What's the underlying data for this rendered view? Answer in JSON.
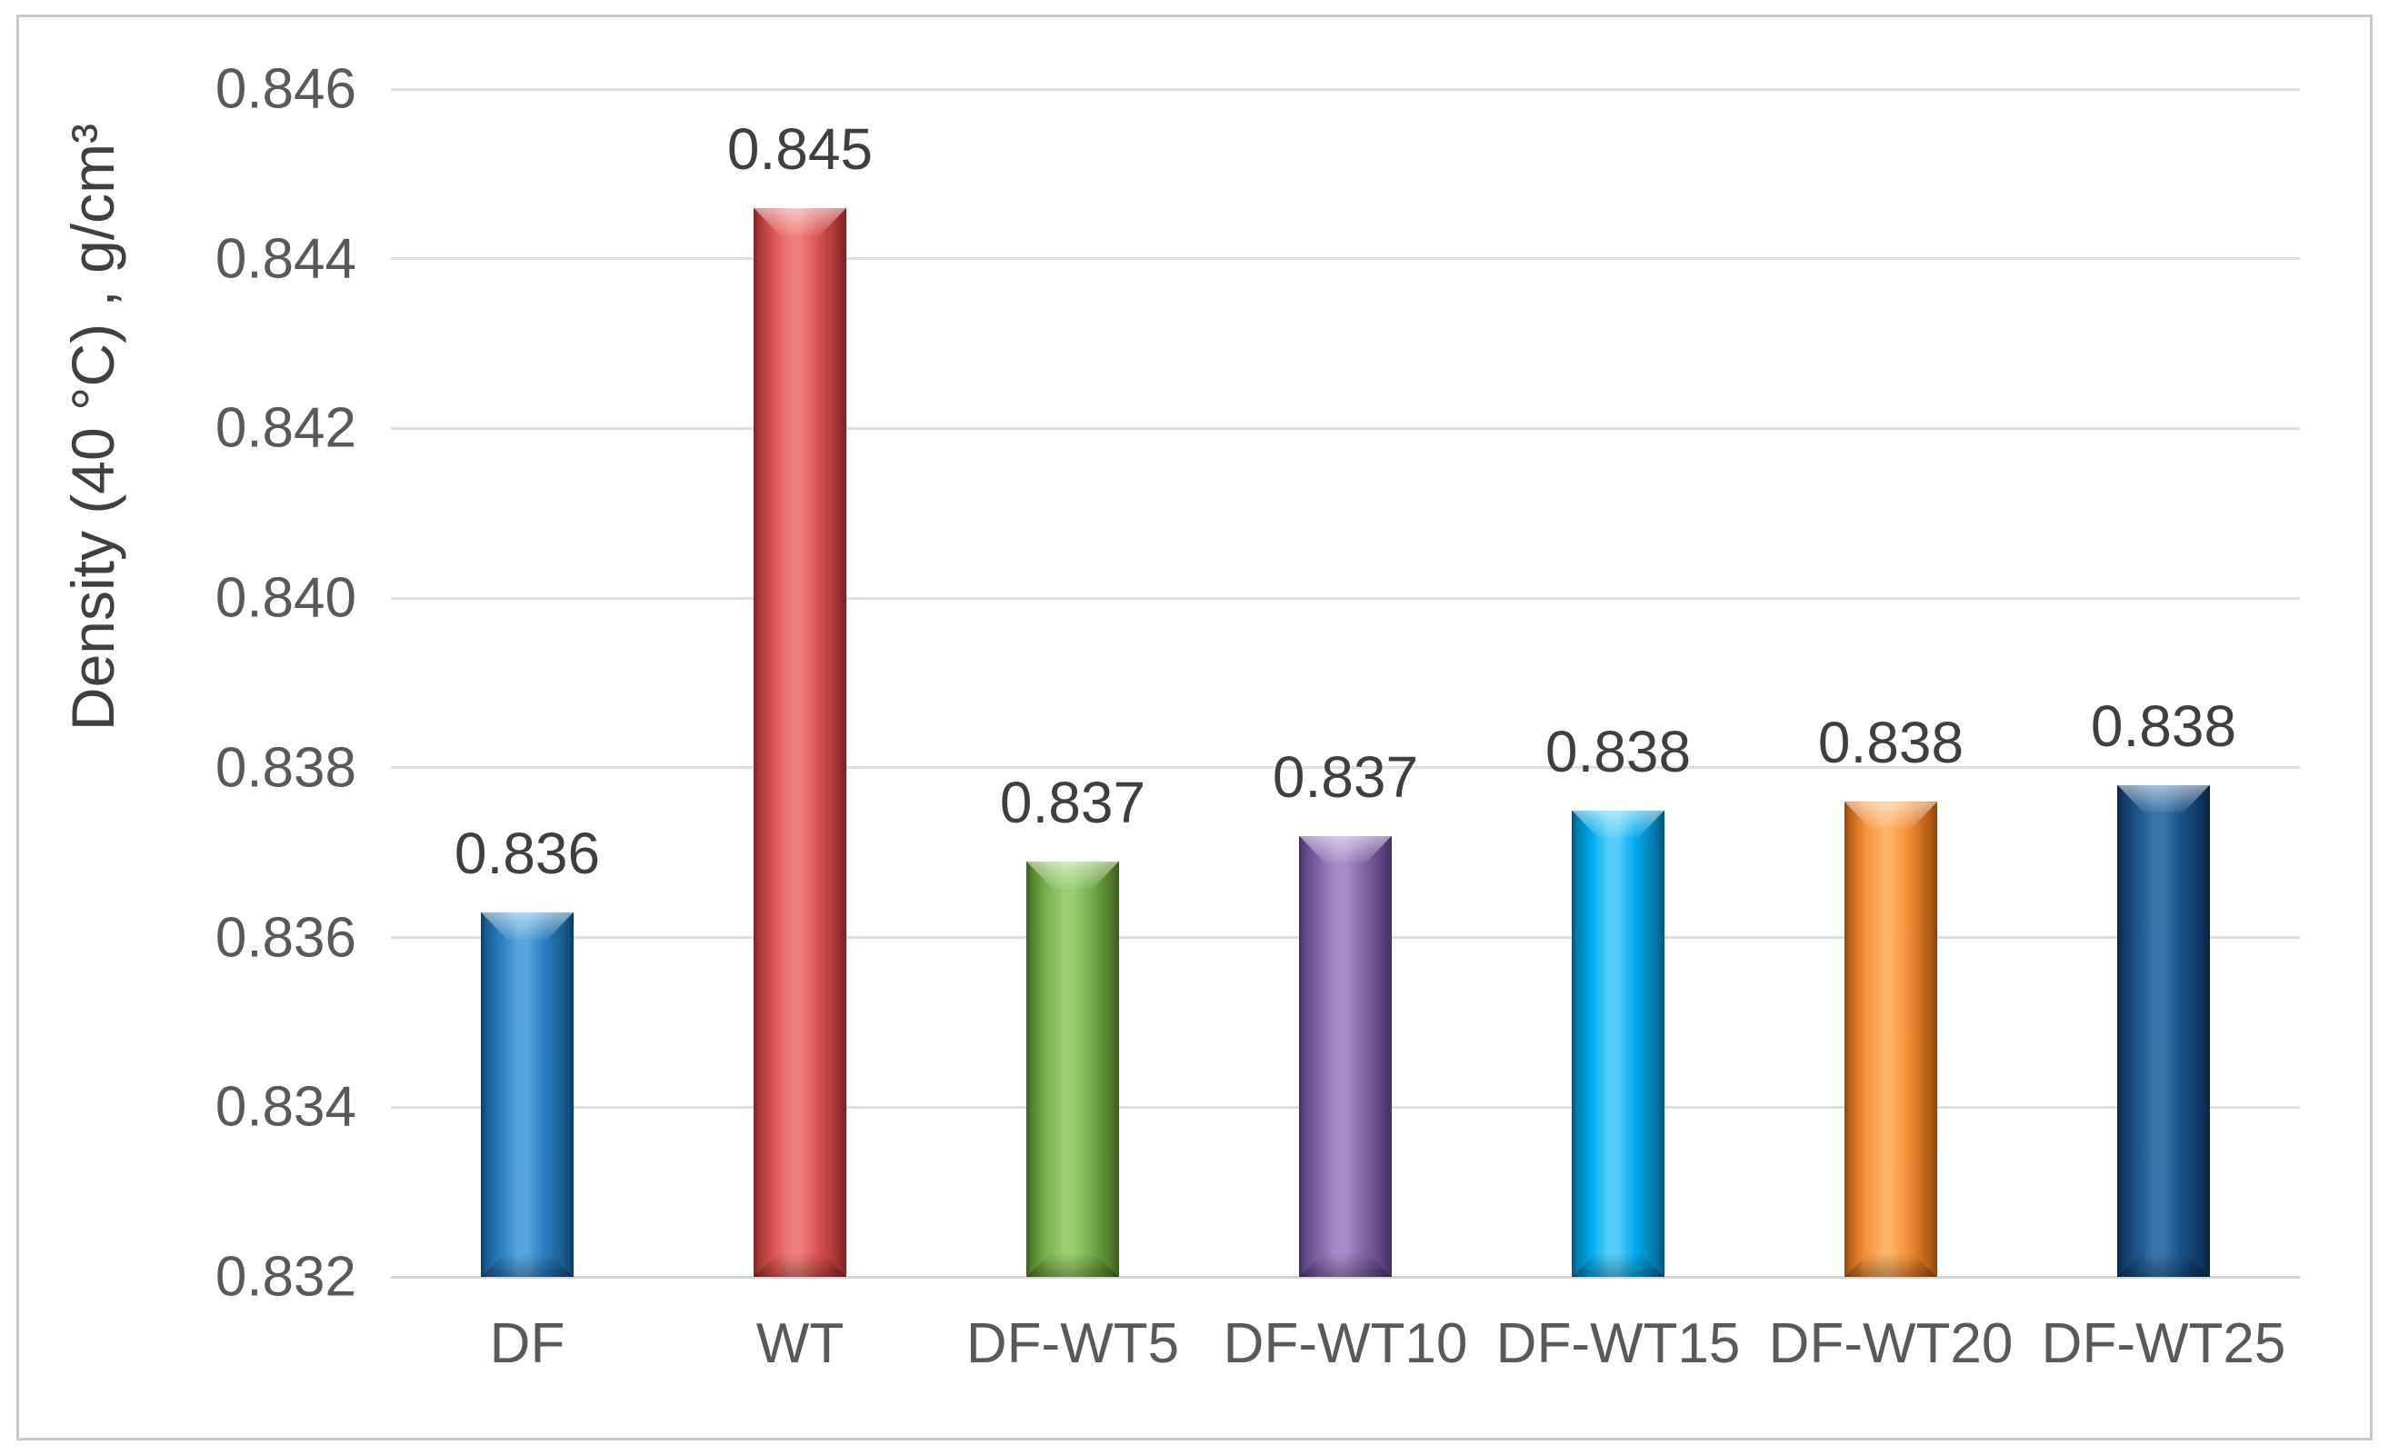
{
  "figure": {
    "background": "#ffffff",
    "border_color": "#c9c9c9",
    "gridline_color": "#dedede",
    "tick_label_color": "#595959",
    "data_label_color": "#3f3f3f",
    "axis_title_color": "#404040"
  },
  "chart_data": {
    "type": "bar",
    "title": "",
    "xlabel": "",
    "ylabel": "Density (40 °C) , g/cm³",
    "categories": [
      "DF",
      "WT",
      "DF-WT5",
      "DF-WT10",
      "DF-WT15",
      "DF-WT20",
      "DF-WT25"
    ],
    "values": [
      0.8363,
      0.8446,
      0.8369,
      0.8372,
      0.8375,
      0.8376,
      0.8378
    ],
    "data_labels": [
      "0.836",
      "0.845",
      "0.837",
      "0.837",
      "0.838",
      "0.838",
      "0.838"
    ],
    "ylim": [
      0.832,
      0.846
    ],
    "ytick_step": 0.002,
    "yticks": [
      "0.846",
      "0.844",
      "0.842",
      "0.840",
      "0.838",
      "0.836",
      "0.834",
      "0.832"
    ],
    "grid": true,
    "legend": "none",
    "bar_style": "beveled-3d",
    "bar_colors": [
      {
        "name": "blue",
        "base": "#2b7fc2",
        "light": "#57a4de",
        "dark": "#175a8e",
        "edge": "#0e3b5f"
      },
      {
        "name": "red",
        "base": "#dd5552",
        "light": "#ee807c",
        "dark": "#a63331",
        "edge": "#7a201f"
      },
      {
        "name": "green",
        "base": "#7ab24e",
        "light": "#9ccb70",
        "dark": "#527f29",
        "edge": "#3a5c1c"
      },
      {
        "name": "purple",
        "base": "#8566ab",
        "light": "#a68bc8",
        "dark": "#5a4380",
        "edge": "#42305e"
      },
      {
        "name": "cyan",
        "base": "#00adef",
        "light": "#55cdf8",
        "dark": "#0079ab",
        "edge": "#00567a"
      },
      {
        "name": "orange",
        "base": "#f49038",
        "light": "#fbb168",
        "dark": "#b85f14",
        "edge": "#8a4510"
      },
      {
        "name": "navy",
        "base": "#1c548b",
        "light": "#3a74ab",
        "dark": "#0e3560",
        "edge": "#092541"
      }
    ]
  }
}
